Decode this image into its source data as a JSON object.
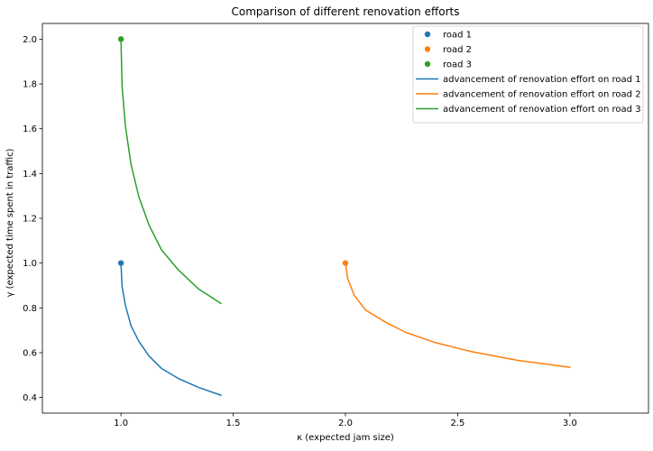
{
  "chart_data": {
    "type": "line",
    "title": "Comparison of different renovation efforts",
    "xlabel": "κ (expected jam size)",
    "ylabel": "γ (expected time spent in traffic)",
    "xlim": [
      0.65,
      3.35
    ],
    "ylim": [
      0.33,
      2.07
    ],
    "xticks": [
      1.0,
      1.5,
      2.0,
      2.5,
      3.0
    ],
    "xtick_labels": [
      "1.0",
      "1.5",
      "2.0",
      "2.5",
      "3.0"
    ],
    "yticks": [
      0.4,
      0.6,
      0.8,
      1.0,
      1.2,
      1.4,
      1.6,
      1.8,
      2.0
    ],
    "ytick_labels": [
      "0.4",
      "0.6",
      "0.8",
      "1.0",
      "1.2",
      "1.4",
      "1.6",
      "1.8",
      "2.0"
    ],
    "grid": false,
    "legend_position": "top-right",
    "legend": [
      {
        "label": "road 1",
        "kind": "point",
        "color": "#1f77b4"
      },
      {
        "label": "road 2",
        "kind": "point",
        "color": "#ff7f0e"
      },
      {
        "label": "road 3",
        "kind": "point",
        "color": "#2ca02c"
      },
      {
        "label": "advancement of renovation effort on road 1",
        "kind": "line",
        "color": "#1f77b4"
      },
      {
        "label": "advancement of renovation effort on road 2",
        "kind": "line",
        "color": "#ff7f0e"
      },
      {
        "label": "advancement of renovation effort on road 3",
        "kind": "line",
        "color": "#2ca02c"
      }
    ],
    "points": [
      {
        "name": "road 1",
        "x": 1.0,
        "y": 1.0,
        "color": "#1f77b4"
      },
      {
        "name": "road 2",
        "x": 2.0,
        "y": 1.0,
        "color": "#ff7f0e"
      },
      {
        "name": "road 3",
        "x": 1.0,
        "y": 2.0,
        "color": "#2ca02c"
      }
    ],
    "series": [
      {
        "name": "advancement of renovation effort on road 1",
        "color": "#1f77b4",
        "x": [
          1.0,
          1.005,
          1.02,
          1.045,
          1.08,
          1.125,
          1.18,
          1.255,
          1.345,
          1.445
        ],
        "y": [
          1.0,
          0.895,
          0.81,
          0.72,
          0.65,
          0.585,
          0.53,
          0.485,
          0.445,
          0.41
        ]
      },
      {
        "name": "advancement of renovation effort on road 2",
        "color": "#ff7f0e",
        "x": [
          2.0,
          2.01,
          2.04,
          2.09,
          2.18,
          2.27,
          2.4,
          2.56,
          2.77,
          3.0
        ],
        "y": [
          1.0,
          0.93,
          0.855,
          0.79,
          0.735,
          0.69,
          0.645,
          0.605,
          0.565,
          0.535
        ]
      },
      {
        "name": "advancement of renovation effort on road 3",
        "color": "#2ca02c",
        "x": [
          1.0,
          1.005,
          1.02,
          1.045,
          1.08,
          1.125,
          1.18,
          1.255,
          1.345,
          1.445
        ],
        "y": [
          2.0,
          1.79,
          1.61,
          1.44,
          1.295,
          1.17,
          1.06,
          0.97,
          0.885,
          0.82
        ]
      }
    ]
  }
}
